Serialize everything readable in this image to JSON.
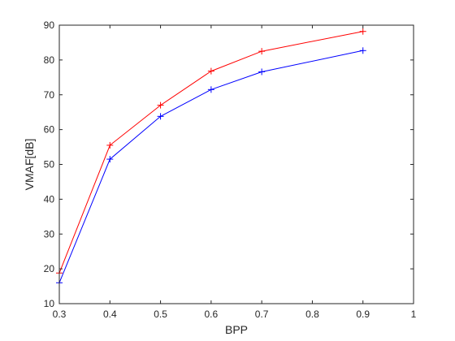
{
  "chart_data": {
    "type": "line",
    "title": "",
    "xlabel": "BPP",
    "ylabel": "VMAF[dB]",
    "xlim": [
      0.3,
      1
    ],
    "ylim": [
      10,
      90
    ],
    "xticks": [
      "0.3",
      "0.4",
      "0.5",
      "0.6",
      "0.7",
      "0.8",
      "0.9",
      "1"
    ],
    "yticks": [
      "10",
      "20",
      "30",
      "40",
      "50",
      "60",
      "70",
      "80",
      "90"
    ],
    "grid": false,
    "legend": "none",
    "marker": "plus",
    "series": [
      {
        "color": "#ff0000",
        "x": [
          0.3,
          0.4,
          0.5,
          0.6,
          0.7,
          0.9
        ],
        "y": [
          18.8,
          55.5,
          67.0,
          76.8,
          82.5,
          88.2
        ]
      },
      {
        "color": "#0000ff",
        "x": [
          0.3,
          0.4,
          0.5,
          0.6,
          0.7,
          0.9
        ],
        "y": [
          16.0,
          51.5,
          63.8,
          71.5,
          76.6,
          82.7
        ]
      }
    ]
  }
}
